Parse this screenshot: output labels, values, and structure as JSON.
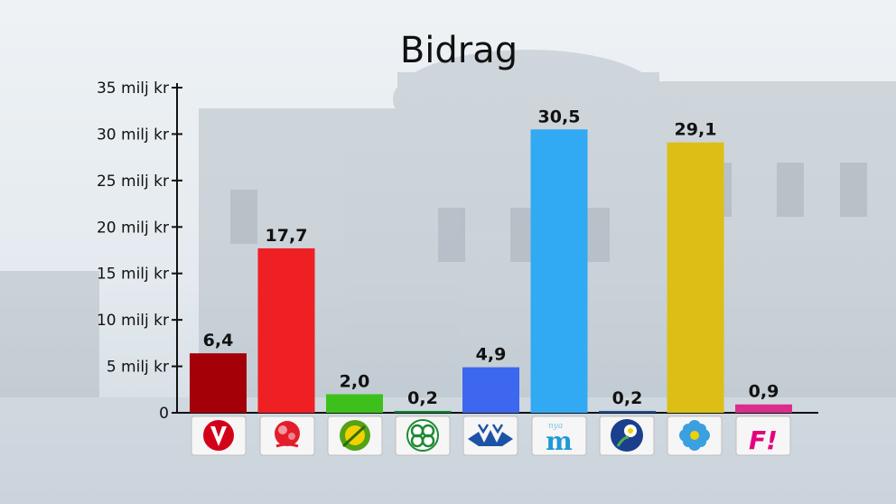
{
  "chart_data": {
    "type": "bar",
    "title": "Bidrag",
    "xlabel": "",
    "ylabel": "",
    "ylim": [
      0,
      35
    ],
    "yticks": [
      0,
      5,
      10,
      15,
      20,
      25,
      30,
      35
    ],
    "ytick_labels": [
      "0",
      "5 milj kr",
      "10 milj kr",
      "15 milj kr",
      "20 milj kr",
      "25 milj kr",
      "30 milj kr",
      "35 milj kr"
    ],
    "categories": [
      "V",
      "S",
      "MP",
      "C",
      "L",
      "M",
      "KD",
      "SD",
      "F!"
    ],
    "category_icons": [
      "vansterpartiet-logo-icon",
      "socialdemokraterna-rose-logo-icon",
      "miljopartiet-dandelion-logo-icon",
      "centerpartiet-clover-logo-icon",
      "liberalerna-logo-icon",
      "moderaterna-logo-icon",
      "kristdemokraterna-logo-icon",
      "sverigedemokraterna-flower-logo-icon",
      "feministiskt-initiativ-logo-icon"
    ],
    "values": [
      6.4,
      17.7,
      2.0,
      0.2,
      4.9,
      30.5,
      0.2,
      29.1,
      0.9
    ],
    "value_labels": [
      "6,4",
      "17,7",
      "2,0",
      "0,2",
      "4,9",
      "30,5",
      "0,2",
      "29,1",
      "0,9"
    ],
    "colors": [
      "#a30008",
      "#ee2024",
      "#3ec01c",
      "#0a8a2c",
      "#3d67ee",
      "#31a9f3",
      "#1b4f9a",
      "#dcbe17",
      "#db2d8c"
    ],
    "grid": false,
    "legend": "none"
  }
}
